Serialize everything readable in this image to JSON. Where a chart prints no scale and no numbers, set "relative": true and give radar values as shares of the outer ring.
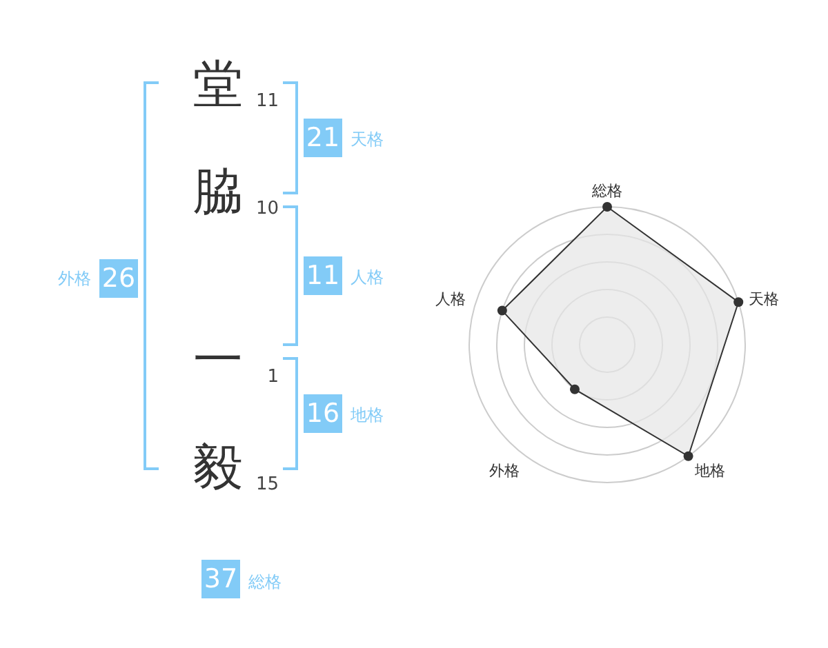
{
  "chart_data": [
    {
      "type": "other",
      "categories": [
        "堂",
        "脇",
        "一",
        "毅"
      ],
      "values": [
        11,
        10,
        1,
        15
      ],
      "data_labels": true,
      "color": "#82cbf7",
      "annotations": [
        "21",
        "天格",
        "11",
        "人格",
        "16",
        "地格",
        "26",
        "外格",
        "37",
        "総格"
      ]
    },
    {
      "type": "radar",
      "categories": [
        "総格",
        "天格",
        "地格",
        "外格",
        "人格"
      ],
      "relative": true,
      "grid": true,
      "marker": "circle",
      "series": [
        {
          "color": "#333333",
          "values": [
            1,
            1,
            1,
            0.4,
            0.8
          ]
        }
      ]
    }
  ]
}
